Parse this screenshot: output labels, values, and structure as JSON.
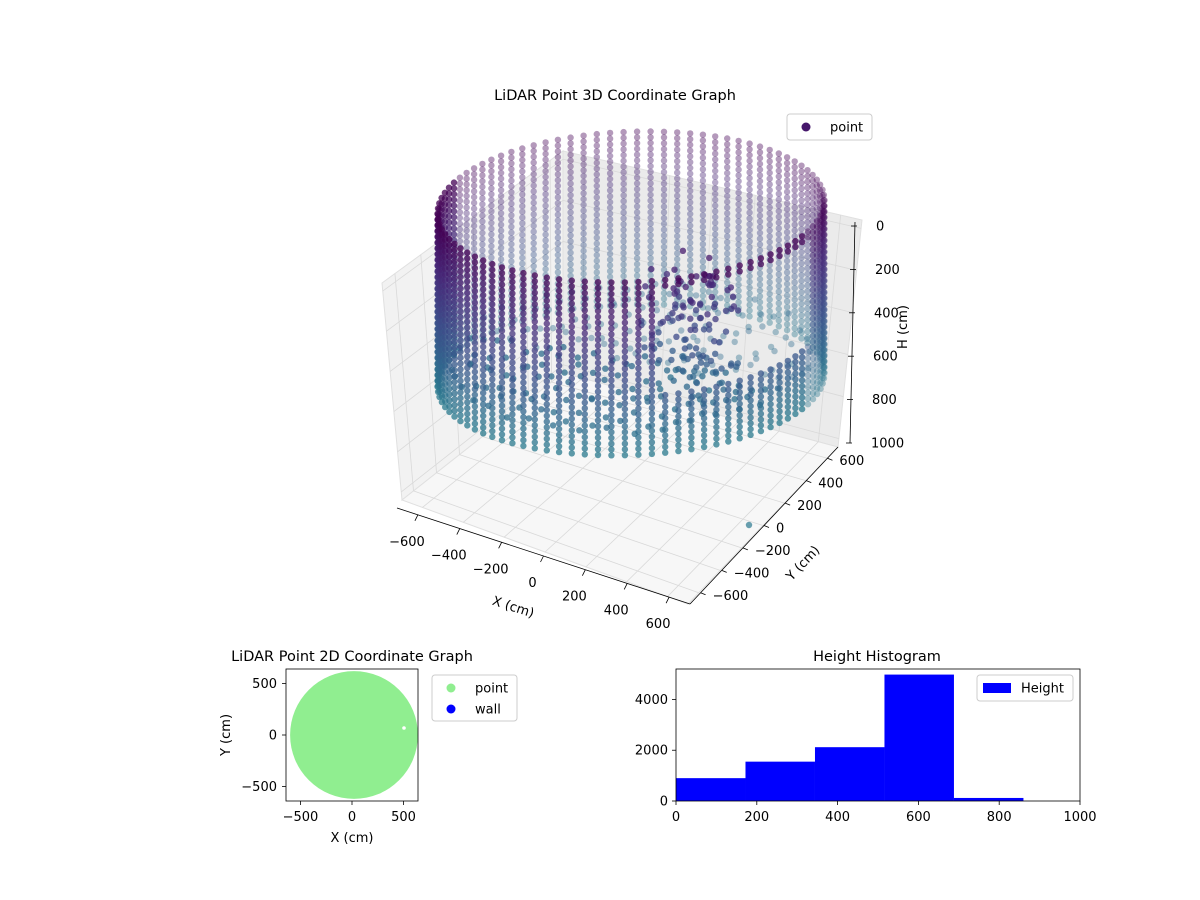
{
  "chart_data": [
    {
      "type": "scatter",
      "projection": "3d",
      "title": "LiDAR Point 3D Coordinate Graph",
      "xlabel": "X (cm)",
      "ylabel": "Y (cm)",
      "zlabel": "H (cm)",
      "xlim": [
        -700,
        700
      ],
      "ylim": [
        -700,
        700
      ],
      "zlim": [
        0,
        1000
      ],
      "z_inverted": true,
      "xticks": [
        "−600",
        "−400",
        "−200",
        "0",
        "200",
        "400",
        "600"
      ],
      "yticks": [
        "−600",
        "−400",
        "−200",
        "0",
        "200",
        "400",
        "600"
      ],
      "zticks": [
        "0",
        "200",
        "400",
        "600",
        "800",
        "1000"
      ],
      "legend": {
        "position": "top-right",
        "entries": [
          {
            "label": "point",
            "color": "#46176b"
          }
        ]
      },
      "colormap": "viridis",
      "description_of_data": "cylindrical wall of points, radius about 600 cm, heights 0 to ~700 cm, with a floor disc near 600 cm and an opening on the +X side",
      "wall_radius": 600,
      "wall_height_range": [
        0,
        720
      ],
      "grid": true
    },
    {
      "type": "scatter",
      "title": "LiDAR Point 2D Coordinate Graph",
      "xlabel": "X (cm)",
      "ylabel": "Y (cm)",
      "xlim": [
        -640,
        640
      ],
      "ylim": [
        -640,
        640
      ],
      "xticks": [
        "−500",
        "0",
        "500"
      ],
      "yticks": [
        "−500",
        "0",
        "500"
      ],
      "legend": {
        "position": "outside-right",
        "entries": [
          {
            "label": "point",
            "color": "#90ee90"
          },
          {
            "label": "wall",
            "color": "#0000ff"
          }
        ]
      },
      "series": [
        {
          "name": "point",
          "color": "#90ee90",
          "shape": "filled circle",
          "center": [
            0,
            0
          ],
          "radius": 620
        }
      ],
      "grid": false
    },
    {
      "type": "bar",
      "subtype": "histogram",
      "title": "Height Histogram",
      "xlim": [
        0,
        1000
      ],
      "ylim": [
        0,
        5200
      ],
      "xticks": [
        "0",
        "200",
        "400",
        "600",
        "800",
        "1000"
      ],
      "yticks": [
        "0",
        "2000",
        "4000"
      ],
      "legend": {
        "position": "top-right",
        "entries": [
          {
            "label": "Height",
            "color": "#0000ff"
          }
        ]
      },
      "bin_edges": [
        0,
        172,
        344,
        516,
        688,
        860
      ],
      "values": [
        900,
        1550,
        2120,
        4980,
        120
      ],
      "color": "#0000ff",
      "grid": false
    }
  ]
}
